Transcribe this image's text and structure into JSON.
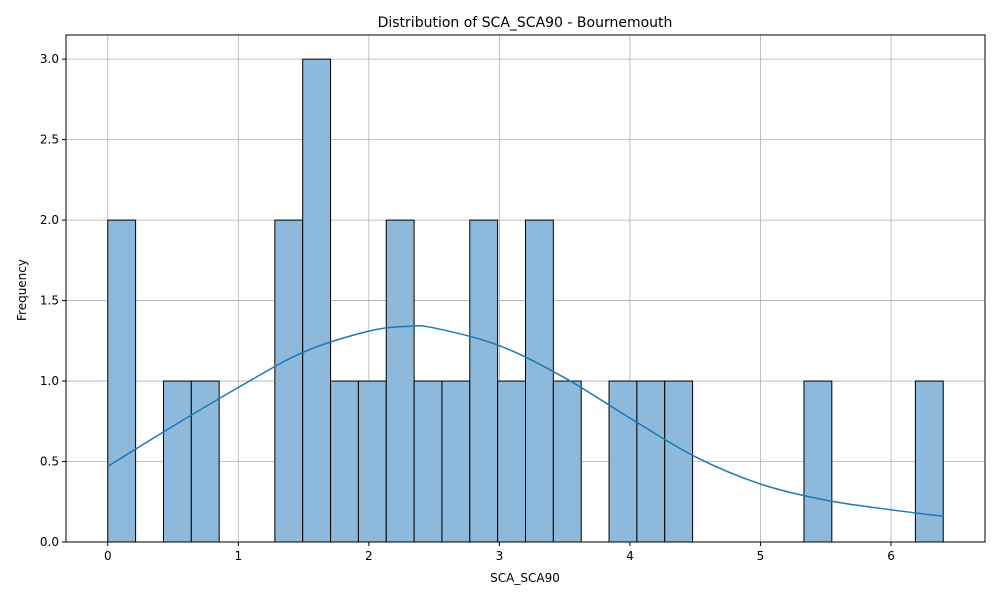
{
  "chart_data": {
    "type": "histogram",
    "title": "Distribution of SCA_SCA90 - Bournemouth",
    "xlabel": "SCA_SCA90",
    "ylabel": "Frequency",
    "xlim": [
      -0.32,
      6.72
    ],
    "ylim": [
      0,
      3.15
    ],
    "xticks": [
      0,
      1,
      2,
      3,
      4,
      5,
      6
    ],
    "xtick_labels": [
      "0",
      "1",
      "2",
      "3",
      "4",
      "5",
      "6"
    ],
    "yticks": [
      0,
      0.5,
      1,
      1.5,
      2,
      2.5,
      3
    ],
    "ytick_labels": [
      "0.0",
      "0.5",
      "1.0",
      "1.5",
      "2.0",
      "2.5",
      "3.0"
    ],
    "grid": true,
    "bin_edges": [
      0,
      0.2133,
      0.4267,
      0.64,
      0.8533,
      1.0667,
      1.28,
      1.4933,
      1.7067,
      1.92,
      2.1333,
      2.3467,
      2.56,
      2.7733,
      2.9867,
      3.2,
      3.4133,
      3.6267,
      3.84,
      4.0533,
      4.2667,
      4.48,
      4.6933,
      4.9067,
      5.12,
      5.3333,
      5.5467,
      5.76,
      5.9733,
      6.1867,
      6.4
    ],
    "counts": [
      2,
      0,
      1,
      1,
      0,
      0,
      2,
      3,
      1,
      1,
      2,
      1,
      1,
      2,
      1,
      2,
      1,
      0,
      1,
      1,
      1,
      0,
      0,
      0,
      0,
      1,
      0,
      0,
      0,
      1
    ],
    "bar_color": "#8cb9dc",
    "bar_edge_color": "#000000",
    "kde": {
      "color": "#1f77b4",
      "x": [
        0,
        0.5,
        1,
        1.5,
        2,
        2.3,
        2.5,
        3,
        3.5,
        4,
        4.5,
        5,
        5.5,
        6,
        6.4
      ],
      "y": [
        0.47,
        0.72,
        0.96,
        1.18,
        1.31,
        1.34,
        1.33,
        1.22,
        1.02,
        0.77,
        0.53,
        0.36,
        0.26,
        0.2,
        0.16
      ]
    }
  }
}
